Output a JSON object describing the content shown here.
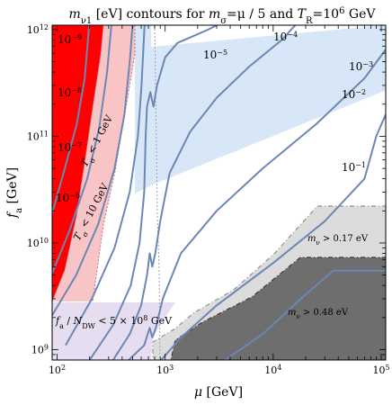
{
  "chart_data": {
    "type": "line",
    "title": "m_{ν1} [eV] contours for m_σ=μ / 5 and T_R=10^6 GeV",
    "title_parts": {
      "a": "m",
      "b": "ν1",
      "c": " [eV] contours for ",
      "d": "m",
      "e": "σ",
      "f": "=μ / 5 and ",
      "g": "T",
      "h": "R",
      "i": "=10",
      "j": "6",
      "k": " GeV"
    },
    "xlabel": "μ [GeV]",
    "xlabel_parts": {
      "sym": "μ",
      "unit": " [GeV]"
    },
    "ylabel": "f_a [GeV]",
    "ylabel_parts": {
      "sym": "f",
      "sub": "a",
      "unit": " [GeV]"
    },
    "x_scale": "log",
    "y_scale": "log",
    "xlim": [
      90,
      110000
    ],
    "ylim": [
      800000000,
      1100000000000
    ],
    "x_ticks": [
      {
        "value": 100,
        "mant": "10",
        "exp": "2"
      },
      {
        "value": 1000,
        "mant": "10",
        "exp": "3"
      },
      {
        "value": 10000,
        "mant": "10",
        "exp": "4"
      },
      {
        "value": 100000,
        "mant": "10",
        "exp": "5"
      }
    ],
    "y_ticks": [
      {
        "value": 1000000000,
        "mant": "10",
        "exp": "9"
      },
      {
        "value": 10000000000,
        "mant": "10",
        "exp": "10"
      },
      {
        "value": 100000000000,
        "mant": "10",
        "exp": "11"
      },
      {
        "value": 1000000000000,
        "mant": "10",
        "exp": "12"
      }
    ],
    "colors": {
      "contour": "#6b87b4",
      "red_region": "#ff0000",
      "pink_region": "#f9c4c6",
      "blue_band": "#d8e7f8",
      "lavender_region": "#e6ddf0",
      "light_gray_region": "#dcdcdc",
      "dark_gray_region": "#6e6e6e",
      "dashed_boundary": "#a0a0b8"
    },
    "series": [
      {
        "name": "10^{-9}",
        "label_parts": {
          "mant": "10",
          "exp": "−9"
        },
        "label_color": "#000000",
        "points": [
          [
            90,
            19000000000.0
          ],
          [
            118,
            50000000000.0
          ],
          [
            152,
            130000000000.0
          ],
          [
            180,
            350000000000.0
          ],
          [
            198,
            1100000000000.0
          ]
        ]
      },
      {
        "name": "10^{-8}",
        "label_parts": {
          "mant": "10",
          "exp": "−8"
        },
        "label_color": "#000000",
        "points": [
          [
            90,
            5200000000.0
          ],
          [
            130,
            13000000000.0
          ],
          [
            190,
            40000000000.0
          ],
          [
            245,
            120000000000.0
          ],
          [
            290,
            400000000000.0
          ],
          [
            318,
            1100000000000.0
          ]
        ]
      },
      {
        "name": "10^{-7}",
        "label_parts": {
          "mant": "10",
          "exp": "−7"
        },
        "label_color": "#000000",
        "points": [
          [
            90,
            2100000000.0
          ],
          [
            150,
            5000000000.0
          ],
          [
            240,
            15000000000.0
          ],
          [
            340,
            50000000000.0
          ],
          [
            420,
            160000000000.0
          ],
          [
            470,
            500000000000.0
          ],
          [
            500,
            1100000000000.0
          ]
        ]
      },
      {
        "name": "10^{-6}",
        "label_parts": {
          "mant": "10",
          "exp": "−6"
        },
        "label_color": "#000000",
        "points": [
          [
            120,
            1100000000.0
          ],
          [
            210,
            3000000000.0
          ],
          [
            340,
            9000000000.0
          ],
          [
            470,
            30000000000.0
          ],
          [
            560,
            100000000000.0
          ],
          [
            605,
            300000000000.0
          ],
          [
            630,
            700000000000.0
          ],
          [
            645,
            1100000000000.0
          ]
        ]
      },
      {
        "name": "10^{-5}",
        "label_parts": {
          "mant": "10",
          "exp": "−5"
        },
        "label_color": "#000000",
        "points": [
          [
            200,
            800000000.0
          ],
          [
            330,
            1700000000.0
          ],
          [
            480,
            4000000000.0
          ],
          [
            580,
            10000000000.0
          ],
          [
            640,
            30000000000.0
          ],
          [
            660,
            100000000000.0
          ],
          [
            680,
            190000000000.0
          ],
          [
            730,
            260000000000.0
          ],
          [
            780,
            190000000000.0
          ],
          [
            840,
            300000000000.0
          ],
          [
            1000,
            550000000000.0
          ],
          [
            1300,
            750000000000.0
          ],
          [
            2500,
            1000000000000.0
          ],
          [
            3000,
            1100000000000.0
          ]
        ]
      },
      {
        "name": "10^{-4}",
        "label_parts": {
          "mant": "10",
          "exp": "−4"
        },
        "label_color": "#000000",
        "points": [
          [
            330,
            800000000.0
          ],
          [
            470,
            1400000000.0
          ],
          [
            600,
            2600000000.0
          ],
          [
            680,
            5000000000.0
          ],
          [
            720,
            8000000000.0
          ],
          [
            760,
            6000000000.0
          ],
          [
            810,
            8000000000.0
          ],
          [
            900,
            16000000000.0
          ],
          [
            1100,
            45000000000.0
          ],
          [
            1700,
            110000000000.0
          ],
          [
            3000,
            230000000000.0
          ],
          [
            6000,
            450000000000.0
          ],
          [
            12000,
            800000000000.0
          ],
          [
            16000,
            1100000000000.0
          ]
        ]
      },
      {
        "name": "10^{-3}",
        "label_parts": {
          "mant": "10",
          "exp": "−3"
        },
        "label_color": "#000000",
        "points": [
          [
            460,
            800000000.0
          ],
          [
            640,
            1100000000.0
          ],
          [
            720,
            1600000000.0
          ],
          [
            760,
            1300000000.0
          ],
          [
            820,
            1600000000.0
          ],
          [
            950,
            3000000000.0
          ],
          [
            1400,
            8000000000.0
          ],
          [
            3000,
            20000000000.0
          ],
          [
            8000,
            50000000000.0
          ],
          [
            25000,
            130000000000.0
          ],
          [
            70000,
            350000000000.0
          ],
          [
            110000,
            650000000000.0
          ]
        ]
      },
      {
        "name": "10^{-2}",
        "label_parts": {
          "mant": "10",
          "exp": "−2"
        },
        "label_color": "#000000",
        "points": [
          [
            920,
            800000000.0
          ],
          [
            1400,
            1300000000.0
          ],
          [
            3000,
            2600000000.0
          ],
          [
            10000,
            6500000000.0
          ],
          [
            30000,
            16000000000.0
          ],
          [
            70000,
            40000000000.0
          ],
          [
            90000,
            100000000000.0
          ],
          [
            110000,
            160000000000.0
          ]
        ]
      },
      {
        "name": "10^{-1}",
        "label_parts": {
          "mant": "10",
          "exp": "−1"
        },
        "label_color": "#000000",
        "points": [
          [
            3600,
            800000000.0
          ],
          [
            8000,
            1400000000.0
          ],
          [
            20000,
            3300000000.0
          ],
          [
            36000,
            5500000000.0
          ],
          [
            110000,
            5500000000.0
          ]
        ]
      }
    ],
    "annotations": [
      {
        "name": "T_σ<1GeV",
        "parts": {
          "sym": "T",
          "sub": "σ",
          "rest": " < 1 GeV"
        },
        "color": "#000000"
      },
      {
        "name": "T_σ<10GeV",
        "parts": {
          "sym": "T",
          "sub": "σ",
          "rest": " < 10 GeV"
        },
        "color": "#000000"
      },
      {
        "name": "f_a/N_DW<5×10^8 GeV",
        "parts": {
          "sym": "f",
          "sub": "a",
          "mid": " / ",
          "sym2": "N",
          "sub2": "DW",
          "mid2": " < 5 × 10",
          "sup": "8",
          "rest": " GeV"
        },
        "color": "#000000"
      },
      {
        "name": "m_ν>0.17eV",
        "parts": {
          "sym": "m",
          "sub": "ν",
          "rest": " > 0.17 eV"
        },
        "color": "#000000"
      },
      {
        "name": "m_ν>0.48eV",
        "parts": {
          "sym": "m",
          "sub": "ν",
          "rest": " > 0.48 eV"
        },
        "color": "#000000"
      }
    ],
    "grid": false,
    "legend": "none"
  }
}
